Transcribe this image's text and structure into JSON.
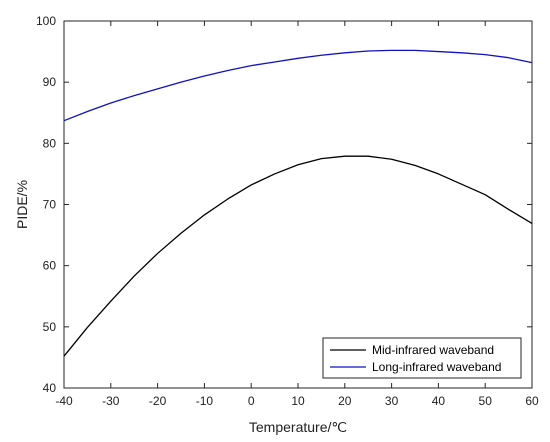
{
  "chart_data": {
    "type": "line",
    "title": "",
    "xlabel": "Temperature/℃",
    "ylabel": "PIDE/%",
    "xlim": [
      -40,
      60
    ],
    "ylim": [
      40,
      100
    ],
    "xticks": [
      -40,
      -30,
      -20,
      -10,
      0,
      10,
      20,
      30,
      40,
      50,
      60
    ],
    "yticks": [
      40,
      50,
      60,
      70,
      80,
      90,
      100
    ],
    "grid": false,
    "legend_position": "bottom-right",
    "x": [
      -40,
      -35,
      -30,
      -25,
      -20,
      -15,
      -10,
      -5,
      0,
      5,
      10,
      15,
      20,
      25,
      30,
      35,
      40,
      45,
      50,
      55,
      60
    ],
    "series": [
      {
        "name": "Mid-infrared waveband",
        "color": "#000000",
        "values": [
          45.2,
          49.9,
          54.2,
          58.3,
          62.0,
          65.3,
          68.3,
          70.9,
          73.2,
          75.0,
          76.5,
          77.5,
          77.9,
          77.9,
          77.4,
          76.4,
          75.0,
          73.3,
          71.6,
          69.2,
          66.9
        ]
      },
      {
        "name": "Long-infrared waveband",
        "color": "#1010c8",
        "values": [
          83.7,
          85.2,
          86.6,
          87.8,
          88.9,
          90.0,
          91.0,
          91.9,
          92.7,
          93.3,
          93.9,
          94.4,
          94.8,
          95.1,
          95.2,
          95.2,
          95.0,
          94.8,
          94.5,
          94.0,
          93.2
        ]
      }
    ]
  }
}
